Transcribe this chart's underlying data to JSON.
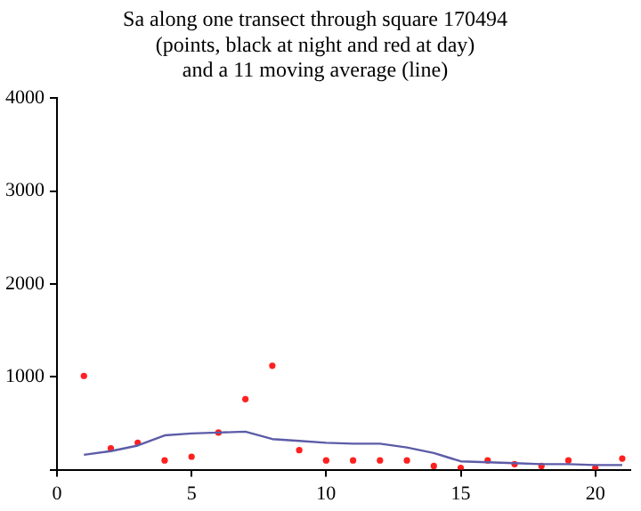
{
  "chart_data": {
    "type": "scatter",
    "title": "Sa along one transect through square 170494\n(points, black at night and red at day)\nand a 11 moving average (line)",
    "x": [
      1,
      2,
      3,
      4,
      5,
      6,
      7,
      8,
      9,
      10,
      11,
      12,
      13,
      14,
      15,
      16,
      17,
      18,
      19,
      20,
      21
    ],
    "series": [
      {
        "color": "#ff2020",
        "values": [
          1010,
          230,
          290,
          100,
          140,
          400,
          760,
          1120,
          210,
          100,
          100,
          100,
          100,
          40,
          20,
          100,
          60,
          40,
          100,
          20,
          120
        ]
      },
      {
        "type": "line",
        "color": "#5c5ca8",
        "values": [
          160,
          200,
          260,
          370,
          390,
          400,
          410,
          330,
          310,
          290,
          280,
          280,
          240,
          180,
          90,
          80,
          70,
          60,
          60,
          50,
          50
        ]
      }
    ],
    "xlim": [
      0,
      21.3
    ],
    "ylim": [
      0,
      4000
    ],
    "xticks": [
      0,
      5,
      10,
      15,
      20
    ],
    "yticks": [
      {
        "value": 0,
        "label": null
      },
      1000,
      2000,
      3000,
      4000
    ],
    "grid": false,
    "legend": false
  }
}
